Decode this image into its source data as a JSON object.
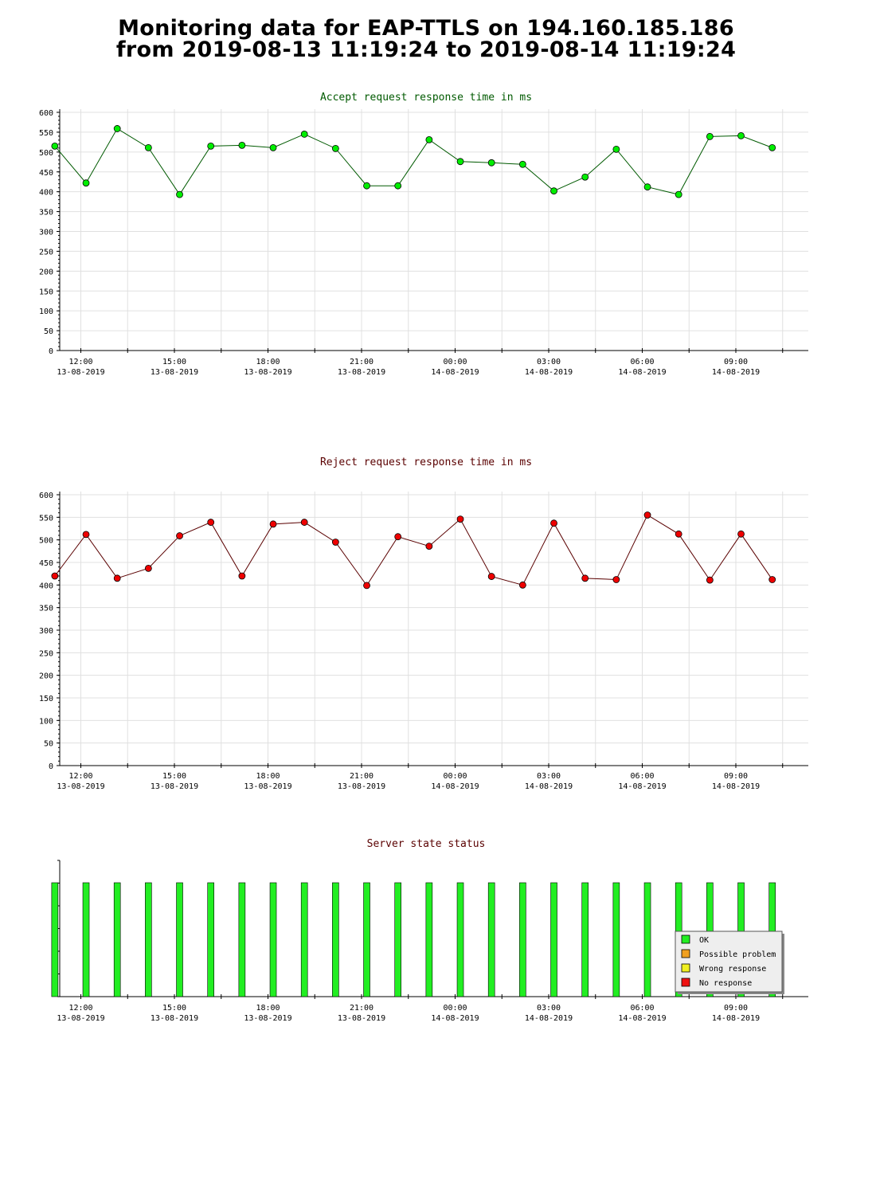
{
  "page": {
    "title_line1": "Monitoring data for EAP-TTLS on 194.160.185.186",
    "title_line2": "from 2019-08-13 11:19:24 to 2019-08-14 11:19:24"
  },
  "x_ticks": [
    {
      "time": "12:00",
      "date": "13-08-2019"
    },
    {
      "time": "15:00",
      "date": "13-08-2019"
    },
    {
      "time": "18:00",
      "date": "13-08-2019"
    },
    {
      "time": "21:00",
      "date": "13-08-2019"
    },
    {
      "time": "00:00",
      "date": "14-08-2019"
    },
    {
      "time": "03:00",
      "date": "14-08-2019"
    },
    {
      "time": "06:00",
      "date": "14-08-2019"
    },
    {
      "time": "09:00",
      "date": "14-08-2019"
    }
  ],
  "chart_data": [
    {
      "type": "line",
      "title": "Accept request response time in ms",
      "title_color": "#005a00",
      "line_color": "#005a00",
      "marker_color": "#00ee00",
      "ylim": [
        0,
        600
      ],
      "yticks": [
        0,
        50,
        100,
        150,
        200,
        250,
        300,
        350,
        400,
        450,
        500,
        550,
        600
      ],
      "x": [
        "2019-08-13 11:10",
        "2019-08-13 12:10",
        "2019-08-13 13:10",
        "2019-08-13 14:10",
        "2019-08-13 15:10",
        "2019-08-13 16:10",
        "2019-08-13 17:10",
        "2019-08-13 18:10",
        "2019-08-13 19:10",
        "2019-08-13 20:10",
        "2019-08-13 21:10",
        "2019-08-13 22:10",
        "2019-08-13 23:10",
        "2019-08-14 00:10",
        "2019-08-14 01:10",
        "2019-08-14 02:10",
        "2019-08-14 03:10",
        "2019-08-14 04:10",
        "2019-08-14 05:10",
        "2019-08-14 06:10",
        "2019-08-14 07:10",
        "2019-08-14 08:10",
        "2019-08-14 09:10",
        "2019-08-14 10:10"
      ],
      "values": [
        515,
        422,
        559,
        511,
        393,
        515,
        517,
        511,
        545,
        509,
        415,
        415,
        531,
        476,
        473,
        469,
        402,
        437,
        507,
        412,
        393,
        539,
        541,
        511
      ]
    },
    {
      "type": "line",
      "title": "Reject request response time in ms",
      "title_color": "#5a0000",
      "line_color": "#5a0000",
      "marker_color": "#ee0000",
      "ylim": [
        0,
        600
      ],
      "yticks": [
        0,
        50,
        100,
        150,
        200,
        250,
        300,
        350,
        400,
        450,
        500,
        550,
        600
      ],
      "x": [
        "2019-08-13 11:10",
        "2019-08-13 12:10",
        "2019-08-13 13:10",
        "2019-08-13 14:10",
        "2019-08-13 15:10",
        "2019-08-13 16:10",
        "2019-08-13 17:10",
        "2019-08-13 18:10",
        "2019-08-13 19:10",
        "2019-08-13 20:10",
        "2019-08-13 21:10",
        "2019-08-13 22:10",
        "2019-08-13 23:10",
        "2019-08-14 00:10",
        "2019-08-14 01:10",
        "2019-08-14 02:10",
        "2019-08-14 03:10",
        "2019-08-14 04:10",
        "2019-08-14 05:10",
        "2019-08-14 06:10",
        "2019-08-14 07:10",
        "2019-08-14 08:10",
        "2019-08-14 09:10",
        "2019-08-14 10:10"
      ],
      "values": [
        420,
        512,
        415,
        437,
        509,
        539,
        420,
        535,
        539,
        495,
        399,
        507,
        486,
        546,
        419,
        400,
        537,
        415,
        412,
        555,
        513,
        411,
        513,
        412
      ]
    },
    {
      "type": "bar",
      "title": "Server state status",
      "title_color": "#5a0000",
      "x": [
        "2019-08-13 11:10",
        "2019-08-13 12:10",
        "2019-08-13 13:10",
        "2019-08-13 14:10",
        "2019-08-13 15:10",
        "2019-08-13 16:10",
        "2019-08-13 17:10",
        "2019-08-13 18:10",
        "2019-08-13 19:10",
        "2019-08-13 20:10",
        "2019-08-13 21:10",
        "2019-08-13 22:10",
        "2019-08-13 23:10",
        "2019-08-14 00:10",
        "2019-08-14 01:10",
        "2019-08-14 02:10",
        "2019-08-14 03:10",
        "2019-08-14 04:10",
        "2019-08-14 05:10",
        "2019-08-14 06:10",
        "2019-08-14 07:10",
        "2019-08-14 08:10",
        "2019-08-14 09:10",
        "2019-08-14 10:10"
      ],
      "states": [
        "OK",
        "OK",
        "OK",
        "OK",
        "OK",
        "OK",
        "OK",
        "OK",
        "OK",
        "OK",
        "OK",
        "OK",
        "OK",
        "OK",
        "OK",
        "OK",
        "OK",
        "OK",
        "OK",
        "OK",
        "OK",
        "OK",
        "OK",
        "OK"
      ],
      "legend_position": "bottom-right",
      "legend": [
        {
          "label": "OK",
          "color": "#22ee22"
        },
        {
          "label": "Possible problem",
          "color": "#f0a020"
        },
        {
          "label": "Wrong response",
          "color": "#f0f020"
        },
        {
          "label": "No response",
          "color": "#ee1111"
        }
      ]
    }
  ]
}
